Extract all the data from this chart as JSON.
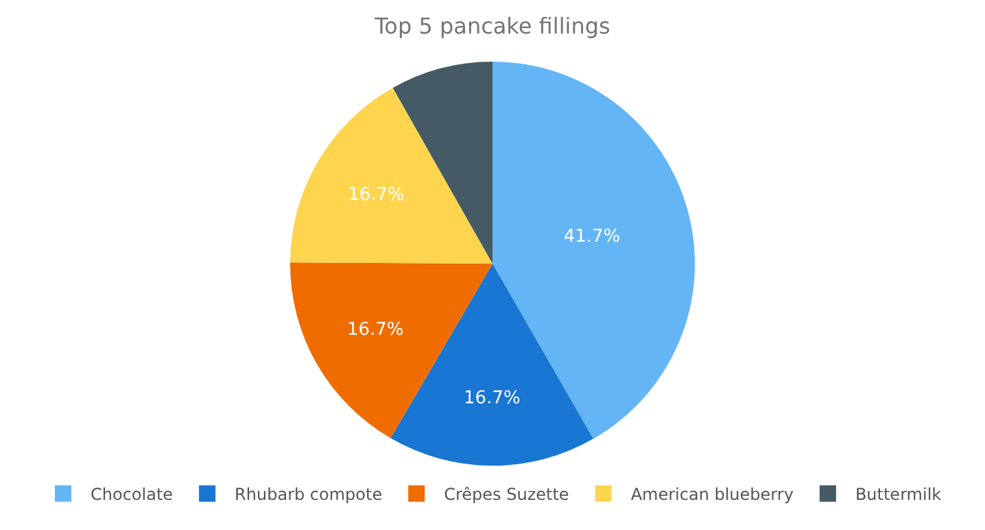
{
  "chart_data": {
    "type": "pie",
    "title": "Top 5 pancake fillings",
    "categories": [
      "Chocolate",
      "Rhubarb compote",
      "Crêpes Suzette",
      "American blueberry",
      "Buttermilk"
    ],
    "values": [
      41.7,
      16.7,
      16.7,
      16.7,
      8.2
    ],
    "value_labels": [
      "41.7%",
      "16.7%",
      "16.7%",
      "16.7%",
      null
    ],
    "colors": [
      "#64b5f6",
      "#1976d2",
      "#ef6c00",
      "#ffd54f",
      "#455a64"
    ],
    "legend": "bottom"
  }
}
